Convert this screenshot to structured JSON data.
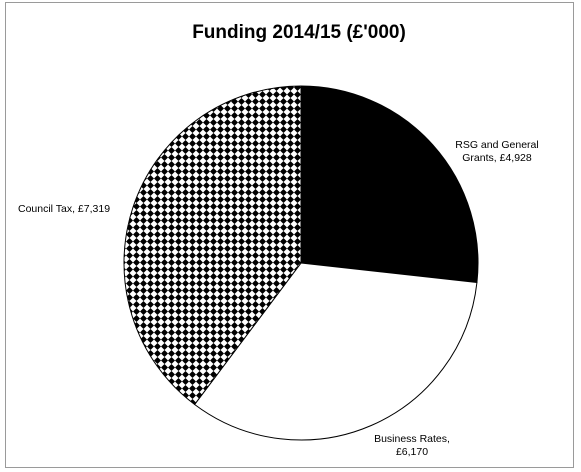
{
  "chart_data": {
    "type": "pie",
    "title": "Funding 2014/15 (£'000)",
    "slices": [
      {
        "label": "RSG and General Grants",
        "value": 4928,
        "value_label": "£4,928",
        "label_lines": [
          "RSG and General",
          "Grants, £4,928"
        ],
        "fill": "solid-black",
        "color": "#000000"
      },
      {
        "label": "Business Rates",
        "value": 6170,
        "value_label": "£6,170",
        "label_lines": [
          "Business Rates,",
          "£6,170"
        ],
        "fill": "white",
        "color": "#ffffff"
      },
      {
        "label": "Council Tax",
        "value": 7319,
        "value_label": "£7,319",
        "label_lines": [
          "Council Tax, £7,319"
        ],
        "fill": "checker-pattern",
        "color": "#000000"
      }
    ],
    "start": "12 o'clock",
    "direction": "clockwise",
    "legend": "none"
  }
}
